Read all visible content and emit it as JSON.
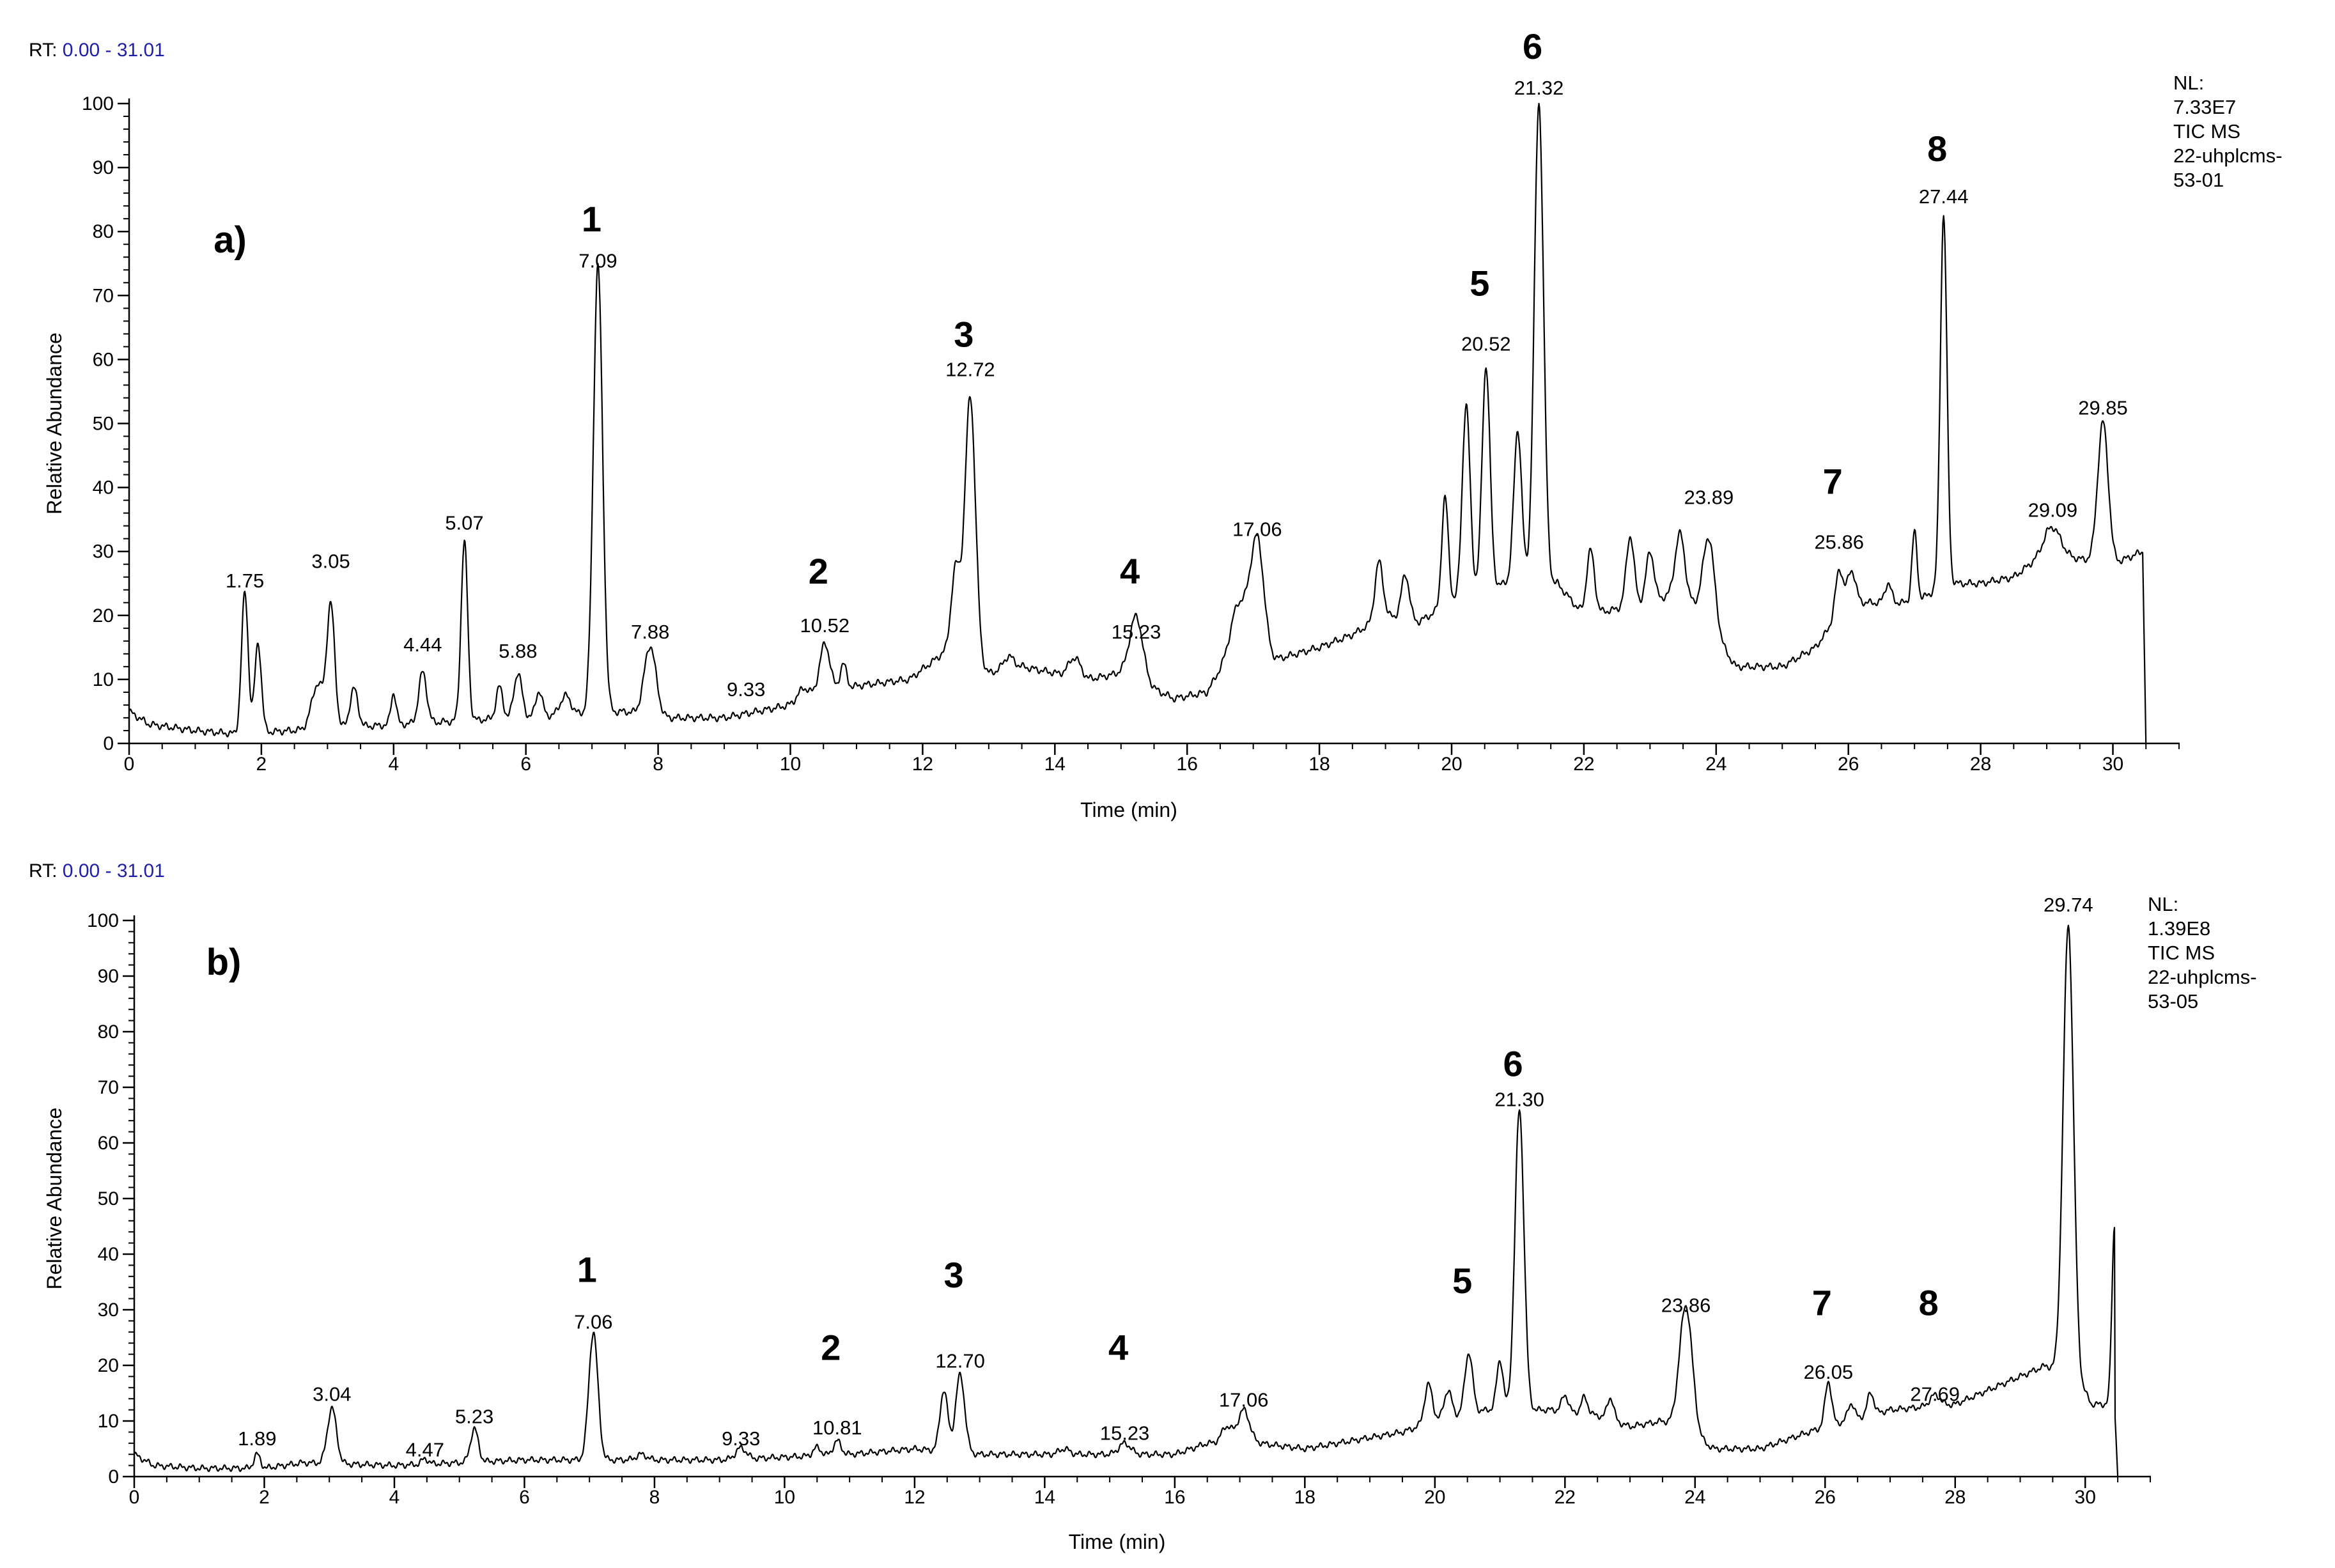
{
  "chart_data": [
    {
      "type": "line",
      "panel_label": "a)",
      "rt_label": "RT:",
      "rt_range": "0.00 - 31.01",
      "xlabel": "Time (min)",
      "ylabel": "Relative Abundance",
      "xlim": [
        0,
        31.01
      ],
      "ylim": [
        0,
        100
      ],
      "x_ticks": [
        "0",
        "2",
        "4",
        "6",
        "8",
        "10",
        "12",
        "14",
        "16",
        "18",
        "20",
        "22",
        "24",
        "26",
        "28",
        "30"
      ],
      "y_ticks": [
        "0",
        "10",
        "20",
        "30",
        "40",
        "50",
        "60",
        "70",
        "80",
        "90",
        "100"
      ],
      "info": [
        "NL:",
        "7.33E7",
        "TIC  MS",
        "22-uhplcms-",
        "53-01"
      ],
      "peak_labels": [
        {
          "x": 1.75,
          "y": 23,
          "label": "1.75"
        },
        {
          "x": 3.05,
          "y": 26,
          "label": "3.05"
        },
        {
          "x": 4.44,
          "y": 13,
          "label": "4.44"
        },
        {
          "x": 5.07,
          "y": 32,
          "label": "5.07"
        },
        {
          "x": 5.88,
          "y": 12,
          "label": "5.88"
        },
        {
          "x": 7.09,
          "y": 73,
          "label": "7.09"
        },
        {
          "x": 7.88,
          "y": 15,
          "label": "7.88"
        },
        {
          "x": 9.33,
          "y": 6,
          "label": "9.33"
        },
        {
          "x": 10.52,
          "y": 16,
          "label": "10.52"
        },
        {
          "x": 12.72,
          "y": 56,
          "label": "12.72"
        },
        {
          "x": 15.23,
          "y": 15,
          "label": "15.23"
        },
        {
          "x": 17.06,
          "y": 31,
          "label": "17.06"
        },
        {
          "x": 20.52,
          "y": 60,
          "label": "20.52"
        },
        {
          "x": 21.32,
          "y": 100,
          "label": "21.32"
        },
        {
          "x": 23.89,
          "y": 36,
          "label": "23.89"
        },
        {
          "x": 25.86,
          "y": 29,
          "label": "25.86"
        },
        {
          "x": 27.44,
          "y": 83,
          "label": "27.44"
        },
        {
          "x": 29.09,
          "y": 34,
          "label": "29.09"
        },
        {
          "x": 29.85,
          "y": 50,
          "label": "29.85"
        }
      ],
      "compound_labels": [
        {
          "x": 7.09,
          "text": "1"
        },
        {
          "x": 10.52,
          "text": "2"
        },
        {
          "x": 12.72,
          "text": "3"
        },
        {
          "x": 15.23,
          "text": "4"
        },
        {
          "x": 20.52,
          "text": "5"
        },
        {
          "x": 21.32,
          "text": "6"
        },
        {
          "x": 25.86,
          "text": "7"
        },
        {
          "x": 27.44,
          "text": "8"
        }
      ],
      "baseline": [
        [
          0,
          5
        ],
        [
          0.3,
          3
        ],
        [
          1,
          2
        ],
        [
          1.6,
          1.5
        ],
        [
          7.5,
          5
        ],
        [
          8,
          4
        ],
        [
          9,
          4
        ],
        [
          9.5,
          5
        ],
        [
          10,
          6
        ],
        [
          11,
          9
        ],
        [
          11.8,
          10
        ],
        [
          12.3,
          14
        ],
        [
          13,
          11
        ],
        [
          13.5,
          12
        ],
        [
          14,
          11
        ],
        [
          14.5,
          10
        ],
        [
          15,
          11
        ],
        [
          15.8,
          7
        ],
        [
          16.3,
          8
        ],
        [
          16.7,
          15
        ],
        [
          17.3,
          13
        ],
        [
          18,
          15
        ],
        [
          18.5,
          17
        ],
        [
          19,
          20
        ],
        [
          19.5,
          19
        ],
        [
          20,
          22
        ],
        [
          20.8,
          25
        ],
        [
          21.6,
          25
        ],
        [
          22,
          20
        ],
        [
          22.5,
          21
        ],
        [
          23,
          22
        ],
        [
          23.5,
          24
        ],
        [
          24.3,
          12
        ],
        [
          25,
          12
        ],
        [
          25.5,
          15
        ],
        [
          26,
          22
        ],
        [
          27,
          22
        ],
        [
          27.5,
          25
        ],
        [
          28,
          25
        ],
        [
          28.5,
          26
        ],
        [
          29,
          30
        ],
        [
          29.4,
          29
        ],
        [
          30,
          28
        ],
        [
          30.45,
          30
        ],
        [
          30.5,
          0
        ]
      ],
      "peaks": [
        [
          1.75,
          22,
          0.05
        ],
        [
          1.95,
          14,
          0.05
        ],
        [
          2.85,
          7,
          0.09
        ],
        [
          3.05,
          19,
          0.06
        ],
        [
          3.4,
          6,
          0.06
        ],
        [
          4.0,
          5,
          0.04
        ],
        [
          4.44,
          8,
          0.06
        ],
        [
          5.07,
          28,
          0.05
        ],
        [
          5.6,
          5,
          0.05
        ],
        [
          5.88,
          7,
          0.06
        ],
        [
          6.2,
          4,
          0.05
        ],
        [
          6.6,
          3,
          0.08
        ],
        [
          7.09,
          70,
          0.07
        ],
        [
          7.88,
          11,
          0.09
        ],
        [
          10.2,
          2,
          0.09
        ],
        [
          10.52,
          8,
          0.08
        ],
        [
          10.8,
          4,
          0.05
        ],
        [
          12.5,
          14,
          0.07
        ],
        [
          12.72,
          42,
          0.08
        ],
        [
          13.3,
          2,
          0.08
        ],
        [
          14.3,
          3,
          0.09
        ],
        [
          15.23,
          10,
          0.1
        ],
        [
          16.8,
          7,
          0.12
        ],
        [
          17.06,
          18,
          0.1
        ],
        [
          18.9,
          9,
          0.06
        ],
        [
          19.3,
          7,
          0.06
        ],
        [
          19.9,
          17,
          0.05
        ],
        [
          20.22,
          30,
          0.06
        ],
        [
          20.52,
          35,
          0.06
        ],
        [
          21.0,
          24,
          0.06
        ],
        [
          21.32,
          75,
          0.07
        ],
        [
          22.1,
          10,
          0.06
        ],
        [
          22.7,
          11,
          0.06
        ],
        [
          23.0,
          8,
          0.06
        ],
        [
          23.45,
          9,
          0.07
        ],
        [
          23.89,
          14,
          0.09
        ],
        [
          25.86,
          7,
          0.06
        ],
        [
          26.05,
          5,
          0.06
        ],
        [
          26.6,
          3,
          0.05
        ],
        [
          27.0,
          11,
          0.04
        ],
        [
          27.44,
          58,
          0.05
        ],
        [
          29.09,
          4,
          0.12
        ],
        [
          29.85,
          22,
          0.08
        ]
      ]
    },
    {
      "type": "line",
      "panel_label": "b)",
      "rt_label": "RT:",
      "rt_range": "0.00 - 31.01",
      "xlabel": "Time (min)",
      "ylabel": "Relative Abundance",
      "xlim": [
        0,
        31.01
      ],
      "ylim": [
        0,
        100
      ],
      "x_ticks": [
        "0",
        "2",
        "4",
        "6",
        "8",
        "10",
        "12",
        "14",
        "16",
        "18",
        "20",
        "22",
        "24",
        "26",
        "28",
        "30"
      ],
      "y_ticks": [
        "0",
        "10",
        "20",
        "30",
        "40",
        "50",
        "60",
        "70",
        "80",
        "90",
        "100"
      ],
      "info": [
        "NL:",
        "1.39E8",
        "TIC  MS",
        "22-uhplcms-",
        "53-05"
      ],
      "peak_labels": [
        {
          "x": 1.89,
          "y": 4,
          "label": "1.89"
        },
        {
          "x": 3.04,
          "y": 12,
          "label": "3.04"
        },
        {
          "x": 4.47,
          "y": 2,
          "label": "4.47"
        },
        {
          "x": 5.23,
          "y": 8,
          "label": "5.23"
        },
        {
          "x": 7.06,
          "y": 25,
          "label": "7.06"
        },
        {
          "x": 9.33,
          "y": 4,
          "label": "9.33"
        },
        {
          "x": 10.81,
          "y": 6,
          "label": "10.81"
        },
        {
          "x": 12.7,
          "y": 18,
          "label": "12.70"
        },
        {
          "x": 15.23,
          "y": 5,
          "label": "15.23"
        },
        {
          "x": 17.06,
          "y": 11,
          "label": "17.06"
        },
        {
          "x": 21.3,
          "y": 65,
          "label": "21.30"
        },
        {
          "x": 23.86,
          "y": 28,
          "label": "23.86"
        },
        {
          "x": 26.05,
          "y": 16,
          "label": "26.05"
        },
        {
          "x": 27.69,
          "y": 12,
          "label": "27.69"
        },
        {
          "x": 29.74,
          "y": 100,
          "label": "29.74"
        }
      ],
      "compound_labels": [
        {
          "x": 7.06,
          "text": "1"
        },
        {
          "x": 10.81,
          "text": "2"
        },
        {
          "x": 12.7,
          "text": "3"
        },
        {
          "x": 15.23,
          "text": "4"
        },
        {
          "x": 20.52,
          "text": "5"
        },
        {
          "x": 21.3,
          "text": "6"
        },
        {
          "x": 26.05,
          "text": "7"
        },
        {
          "x": 27.69,
          "text": "8"
        }
      ],
      "baseline": [
        [
          0,
          4
        ],
        [
          0.3,
          2
        ],
        [
          1,
          1.5
        ],
        [
          2,
          1.5
        ],
        [
          2.6,
          2.5
        ],
        [
          4,
          2
        ],
        [
          6,
          3
        ],
        [
          8,
          3
        ],
        [
          9,
          3
        ],
        [
          10,
          3.5
        ],
        [
          11,
          4
        ],
        [
          12,
          5
        ],
        [
          13,
          4
        ],
        [
          14,
          4
        ],
        [
          15,
          4
        ],
        [
          16,
          4
        ],
        [
          16.5,
          6
        ],
        [
          17.3,
          6
        ],
        [
          18,
          5
        ],
        [
          19,
          7
        ],
        [
          19.5,
          8
        ],
        [
          20,
          10
        ],
        [
          20.8,
          12
        ],
        [
          21.8,
          12
        ],
        [
          22.5,
          11
        ],
        [
          23,
          9
        ],
        [
          23.5,
          10
        ],
        [
          24.3,
          5
        ],
        [
          25,
          5
        ],
        [
          25.5,
          7
        ],
        [
          26,
          9
        ],
        [
          27,
          12
        ],
        [
          28,
          13
        ],
        [
          29,
          18
        ],
        [
          29.4,
          20
        ],
        [
          30,
          15
        ],
        [
          30.1,
          13
        ],
        [
          30.45,
          13
        ],
        [
          30.5,
          0
        ]
      ],
      "peaks": [
        [
          1.89,
          2.5,
          0.05
        ],
        [
          3.04,
          10,
          0.07
        ],
        [
          4.47,
          1,
          0.05
        ],
        [
          5.23,
          6,
          0.06
        ],
        [
          7.06,
          23,
          0.07
        ],
        [
          7.8,
          1,
          0.08
        ],
        [
          9.33,
          2,
          0.08
        ],
        [
          10.5,
          1.5,
          0.06
        ],
        [
          10.81,
          2.5,
          0.06
        ],
        [
          12.45,
          11,
          0.06
        ],
        [
          12.7,
          14,
          0.07
        ],
        [
          14.3,
          1,
          0.08
        ],
        [
          15.23,
          2,
          0.09
        ],
        [
          16.8,
          3,
          0.08
        ],
        [
          17.06,
          6,
          0.09
        ],
        [
          19.9,
          7,
          0.06
        ],
        [
          20.2,
          5,
          0.06
        ],
        [
          20.52,
          11,
          0.06
        ],
        [
          21.0,
          9,
          0.05
        ],
        [
          21.3,
          54,
          0.07
        ],
        [
          22.0,
          3,
          0.05
        ],
        [
          22.3,
          3,
          0.05
        ],
        [
          22.7,
          4,
          0.05
        ],
        [
          23.86,
          23,
          0.1
        ],
        [
          26.05,
          8,
          0.05
        ],
        [
          26.4,
          3,
          0.05
        ],
        [
          26.7,
          4,
          0.05
        ],
        [
          27.69,
          2,
          0.08
        ],
        [
          29.74,
          82,
          0.08
        ],
        [
          30.45,
          32,
          0.04
        ]
      ]
    }
  ]
}
